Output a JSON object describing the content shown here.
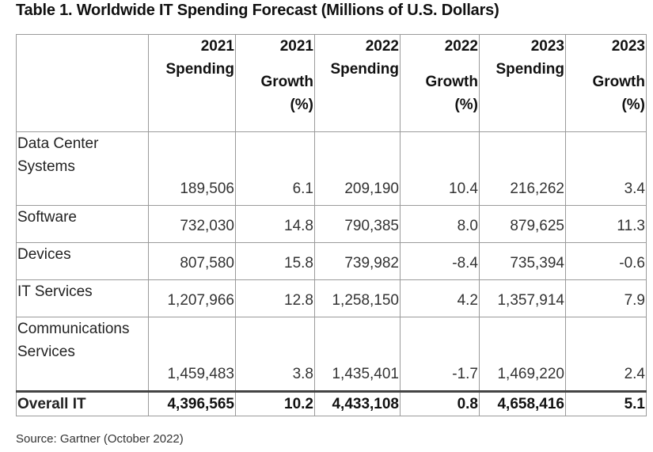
{
  "title": "Table 1. Worldwide IT Spending Forecast (Millions of U.S. Dollars)",
  "columns": [
    {
      "line1": "2021",
      "line2": "Spending",
      "line3": ""
    },
    {
      "line1": "2021",
      "line2": "Growth",
      "line3": "(%)"
    },
    {
      "line1": "2022",
      "line2": "Spending",
      "line3": ""
    },
    {
      "line1": "2022",
      "line2": "Growth",
      "line3": "(%)"
    },
    {
      "line1": "2023",
      "line2": "Spending",
      "line3": ""
    },
    {
      "line1": "2023",
      "line2": "Growth",
      "line3": "(%)"
    }
  ],
  "rows": [
    {
      "category_line1": "Data Center",
      "category_line2": "Systems",
      "values": [
        "189,506",
        "6.1",
        "209,190",
        "10.4",
        "216,262",
        "3.4"
      ]
    },
    {
      "category_line1": "Software",
      "category_line2": "",
      "values": [
        "732,030",
        "14.8",
        "790,385",
        "8.0",
        "879,625",
        "11.3"
      ]
    },
    {
      "category_line1": "Devices",
      "category_line2": "",
      "values": [
        "807,580",
        "15.8",
        "739,982",
        "-8.4",
        "735,394",
        "-0.6"
      ]
    },
    {
      "category_line1": "IT Services",
      "category_line2": "",
      "values": [
        "1,207,966",
        "12.8",
        "1,258,150",
        "4.2",
        "1,357,914",
        "7.9"
      ]
    },
    {
      "category_line1": "Communications",
      "category_line2": "Services",
      "values": [
        "1,459,483",
        "3.8",
        "1,435,401",
        "-1.7",
        "1,469,220",
        "2.4"
      ]
    }
  ],
  "total": {
    "label": "Overall IT",
    "values": [
      "4,396,565",
      "10.2",
      "4,433,108",
      "0.8",
      "4,658,416",
      "5.1"
    ]
  },
  "source": "Source: Gartner (October 2022)"
}
